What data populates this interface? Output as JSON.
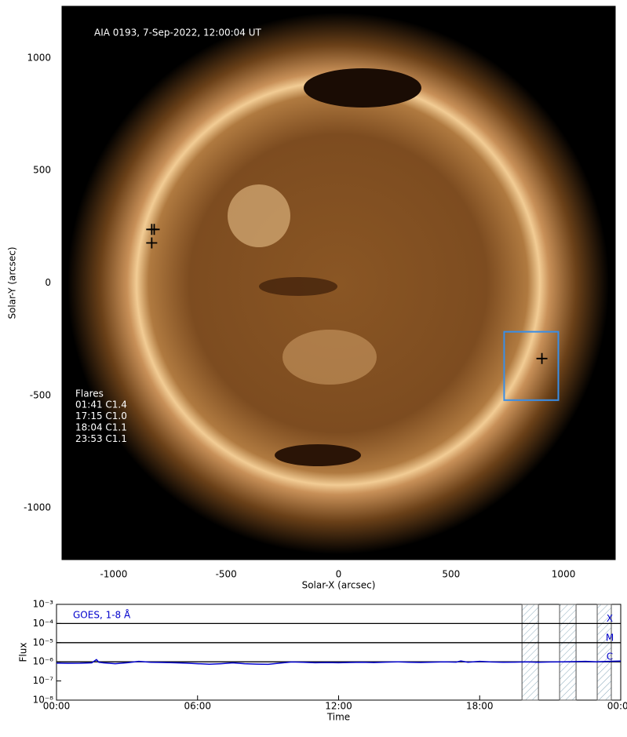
{
  "chart_data": [
    {
      "type": "image",
      "title": "AIA 0193, 7-Sep-2022, 12:00:04 UT",
      "xlabel": "Solar-X (arcsec)",
      "ylabel": "Solar-Y (arcsec)",
      "xlim": [
        -1230,
        1230
      ],
      "ylim": [
        -1230,
        1230
      ],
      "xticks": [
        -1000,
        -500,
        0,
        500,
        1000
      ],
      "yticks": [
        -1000,
        -500,
        0,
        500,
        1000
      ],
      "markers": {
        "x": [
          -831,
          -820,
          -831,
          904
        ],
        "y": [
          238,
          238,
          178,
          -336
        ],
        "color": "#000000"
      },
      "roi": {
        "xlim": [
          736,
          977
        ],
        "ylim": [
          -521,
          -217
        ],
        "color": "#3a8ee6"
      },
      "flares_title": "Flares",
      "flares": [
        "01:41 C1.4",
        "17:15 C1.0",
        "18:04 C1.1",
        "23:53 C1.1"
      ]
    },
    {
      "type": "line",
      "xlabel": "Time",
      "ylabel": "Flux",
      "log_y": true,
      "xlim": [
        0,
        24
      ],
      "ylim": [
        1e-08,
        0.001
      ],
      "xticks": [
        {
          "value": 0,
          "label": "00:00"
        },
        {
          "value": 6,
          "label": "06:00"
        },
        {
          "value": 12,
          "label": "12:00"
        },
        {
          "value": 18,
          "label": "18:00"
        },
        {
          "value": 24,
          "label": "00:00"
        }
      ],
      "yticks": [
        {
          "value": 1e-08,
          "label": "10⁻⁸"
        },
        {
          "value": 1e-07,
          "label": "10⁻⁷"
        },
        {
          "value": 1e-06,
          "label": "10⁻⁶"
        },
        {
          "value": 1e-05,
          "label": "10⁻⁵"
        },
        {
          "value": 0.0001,
          "label": "10⁻⁴"
        },
        {
          "value": 0.001,
          "label": "10⁻³"
        }
      ],
      "class_levels": [
        {
          "label": "X",
          "value": 0.0001
        },
        {
          "label": "M",
          "value": 1e-05
        },
        {
          "label": "C",
          "value": 1e-06
        }
      ],
      "shaded": [
        [
          19.8,
          20.5
        ],
        [
          21.4,
          22.1
        ],
        [
          23.0,
          23.6
        ]
      ],
      "x": [
        0,
        0.5,
        1,
        1.5,
        1.7,
        1.8,
        2,
        2.5,
        3,
        3.5,
        4,
        4.5,
        5,
        5.5,
        6,
        6.5,
        7,
        7.5,
        8,
        8.5,
        9,
        9.5,
        10,
        10.5,
        11,
        11.5,
        12,
        12.5,
        13,
        13.5,
        14,
        14.5,
        15,
        15.5,
        16,
        16.5,
        17,
        17.2,
        17.5,
        18,
        18.5,
        19,
        19.5,
        20,
        20.5,
        21,
        21.5,
        22,
        22.5,
        23,
        23.5,
        24
      ],
      "series": [
        {
          "name": "GOES, 1-8 Å",
          "color": "#0000cc",
          "values": [
            8.5e-07,
            8.3e-07,
            8.4e-07,
            8.8e-07,
            1.3e-06,
            9.5e-07,
            8.8e-07,
            8e-07,
            9e-07,
            1.05e-06,
            9.5e-07,
            9.3e-07,
            9e-07,
            8.5e-07,
            8e-07,
            7.5e-07,
            8e-07,
            8.8e-07,
            8e-07,
            7.6e-07,
            7.4e-07,
            8.5e-07,
            9.8e-07,
            9.5e-07,
            9e-07,
            9.2e-07,
            9e-07,
            9.3e-07,
            9.5e-07,
            9.2e-07,
            9.6e-07,
            1e-06,
            9.5e-07,
            9.3e-07,
            9.6e-07,
            1e-06,
            9.6e-07,
            1.1e-06,
            9.5e-07,
            1.05e-06,
            9.8e-07,
            9.5e-07,
            9.6e-07,
            1e-06,
            9.5e-07,
            9.8e-07,
            1e-06,
            1.02e-06,
            1.05e-06,
            1e-06,
            1.05e-06,
            1.1e-06
          ]
        }
      ]
    }
  ]
}
